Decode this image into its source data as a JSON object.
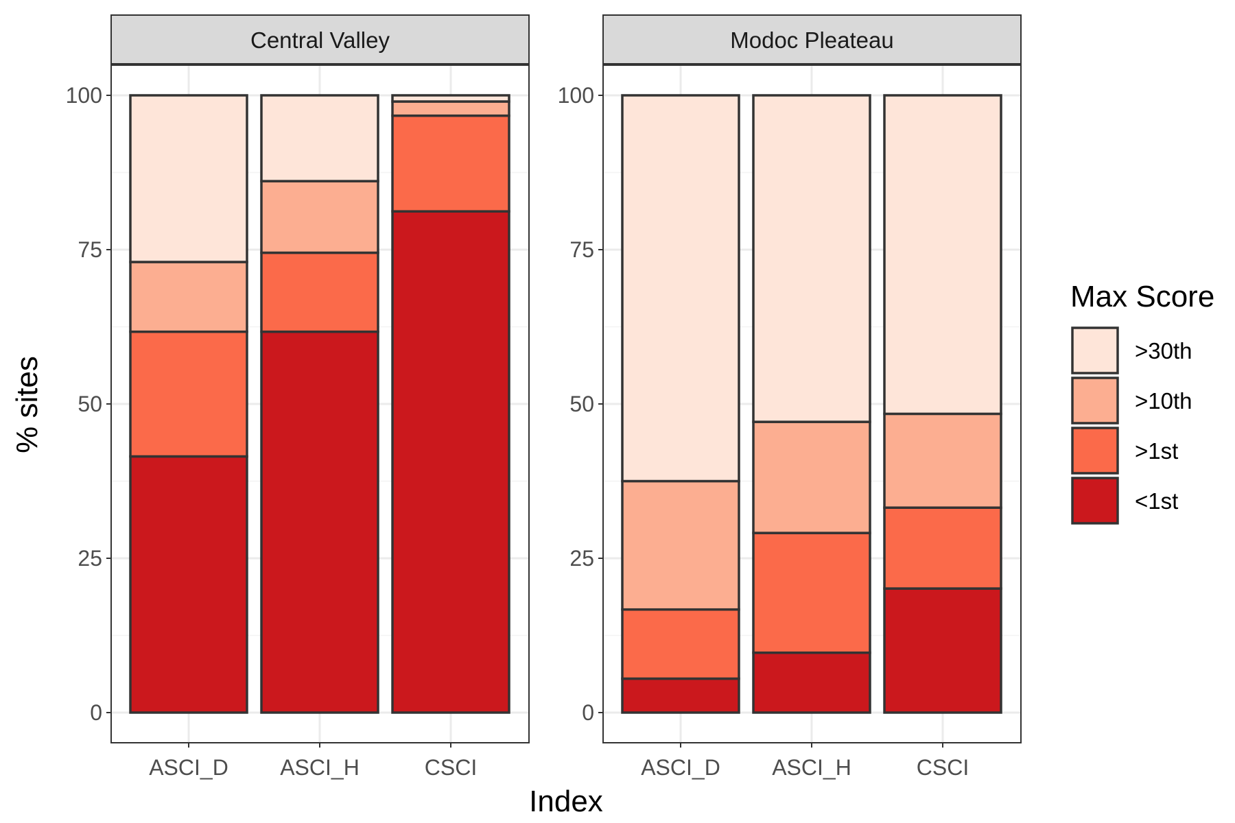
{
  "chart_data": {
    "type": "bar",
    "stacked": true,
    "xlabel": "Index",
    "ylabel": "% sites",
    "ylim": [
      0,
      100
    ],
    "y_ticks": [
      0,
      25,
      50,
      75,
      100
    ],
    "grid": true,
    "categories": [
      "ASCI_D",
      "ASCI_H",
      "CSCI"
    ],
    "legend": {
      "title": "Max Score",
      "position": "right",
      "entries": [
        ">30th",
        ">10th",
        ">1st",
        "<1st"
      ]
    },
    "colors": {
      ">30th": "#fee5d9",
      ">10th": "#fcae91",
      ">1st": "#fb6a4a",
      "<1st": "#cb181d",
      "outline": "#333333",
      "strip_fill": "#d9d9d9",
      "grid": "#ebebeb"
    },
    "stack_order_bottom_to_top": [
      "<1st",
      ">1st",
      ">10th",
      ">30th"
    ],
    "panels": [
      {
        "title": "Central Valley",
        "series": [
          {
            "name": "<1st",
            "values": [
              41.5,
              61.7,
              81.2
            ]
          },
          {
            "name": ">1st",
            "values": [
              20.2,
              12.8,
              15.5
            ]
          },
          {
            "name": ">10th",
            "values": [
              11.3,
              11.6,
              2.3
            ]
          },
          {
            "name": ">30th",
            "values": [
              27.0,
              13.9,
              1.0
            ]
          }
        ]
      },
      {
        "title": "Modoc Pleateau",
        "series": [
          {
            "name": "<1st",
            "values": [
              5.5,
              9.7,
              20.1
            ]
          },
          {
            "name": ">1st",
            "values": [
              11.2,
              19.4,
              13.1
            ]
          },
          {
            "name": ">10th",
            "values": [
              20.8,
              18.0,
              15.2
            ]
          },
          {
            "name": ">30th",
            "values": [
              62.5,
              52.9,
              51.6
            ]
          }
        ]
      }
    ]
  }
}
